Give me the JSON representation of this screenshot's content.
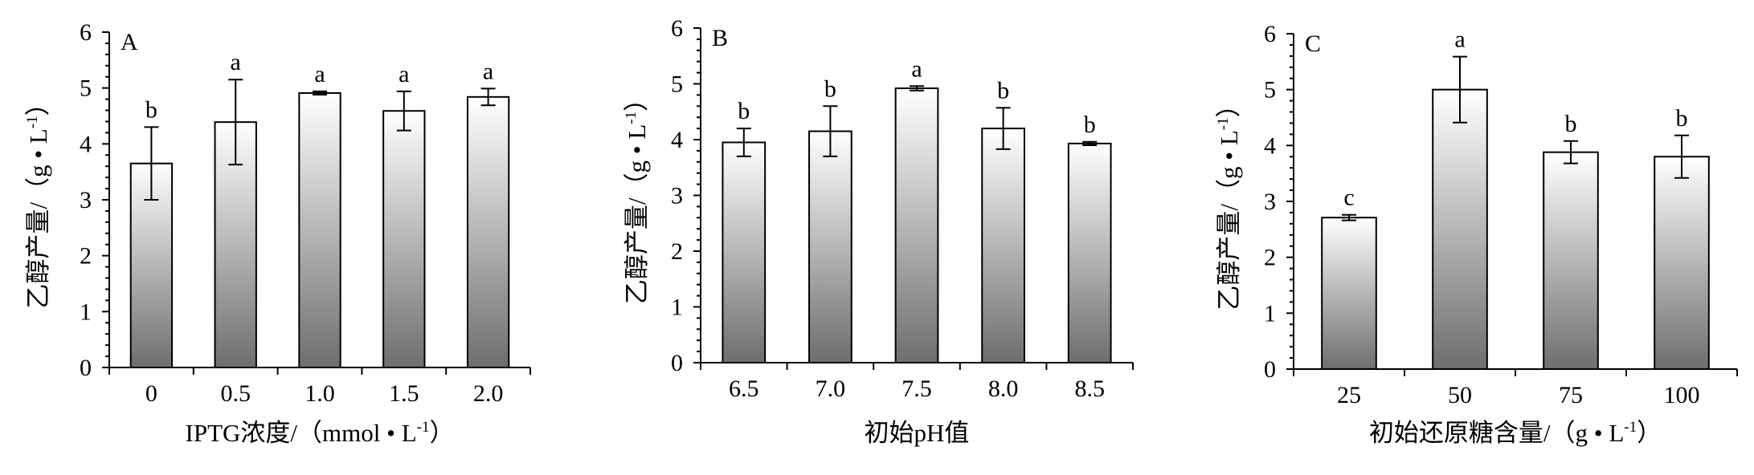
{
  "chart_data": [
    {
      "type": "bar",
      "panel_label": "A",
      "categories": [
        "0",
        "0.5",
        "1.0",
        "1.5",
        "2.0"
      ],
      "values": [
        3.65,
        4.39,
        4.91,
        4.59,
        4.84
      ],
      "errors": [
        0.65,
        0.76,
        0.03,
        0.35,
        0.15
      ],
      "significance": [
        "b",
        "a",
        "a",
        "a",
        "a"
      ],
      "xlabel": "IPTG浓度/（mmol • L",
      "xlabel_sup": "-1",
      "xlabel_end": "）",
      "ylabel": "乙醇产量/（g • L",
      "ylabel_sup": "-1",
      "ylabel_end": "）",
      "ylim": [
        0,
        6
      ],
      "yticks": [
        "0",
        "1",
        "2",
        "3",
        "4",
        "5",
        "6"
      ],
      "grid": false
    },
    {
      "type": "bar",
      "panel_label": "B",
      "categories": [
        "6.5",
        "7.0",
        "7.5",
        "8.0",
        "8.5"
      ],
      "values": [
        3.95,
        4.15,
        4.92,
        4.2,
        3.93
      ],
      "errors": [
        0.25,
        0.45,
        0.04,
        0.37,
        0.03
      ],
      "significance": [
        "b",
        "b",
        "a",
        "b",
        "b"
      ],
      "xlabel": "初始pH值",
      "xlabel_sup": "",
      "xlabel_end": "",
      "ylabel": "乙醇产量/（g • L",
      "ylabel_sup": "-1",
      "ylabel_end": "）",
      "ylim": [
        0,
        6
      ],
      "yticks": [
        "0",
        "1",
        "2",
        "3",
        "4",
        "5",
        "6"
      ],
      "grid": false
    },
    {
      "type": "bar",
      "panel_label": "C",
      "categories": [
        "25",
        "50",
        "75",
        "100"
      ],
      "values": [
        2.71,
        5.0,
        3.88,
        3.8
      ],
      "errors": [
        0.05,
        0.59,
        0.2,
        0.38
      ],
      "significance": [
        "c",
        "a",
        "b",
        "b"
      ],
      "xlabel": "初始还原糖含量/（g • L",
      "xlabel_sup": "-1",
      "xlabel_end": "）",
      "ylabel": "乙醇产量/（g • L",
      "ylabel_sup": "-1",
      "ylabel_end": "）",
      "ylim": [
        0,
        6
      ],
      "yticks": [
        "0",
        "1",
        "2",
        "3",
        "4",
        "5",
        "6"
      ],
      "grid": false
    }
  ],
  "colors": {
    "bar_gradient_top": "#ffffff",
    "bar_gradient_bottom": "#6e6e6e",
    "axis": "#000000"
  }
}
